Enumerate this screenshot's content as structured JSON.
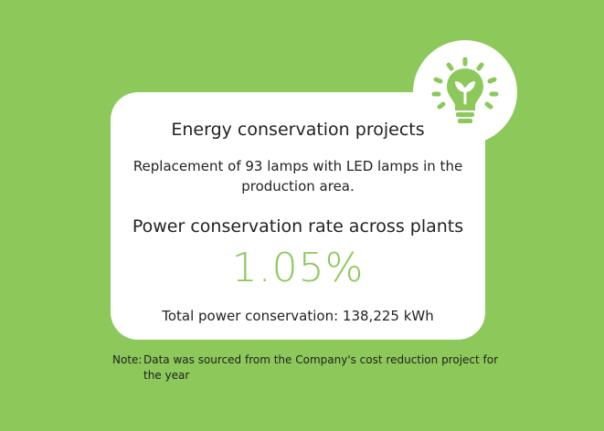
{
  "card": {
    "title": "Energy conservation projects",
    "description": "Replacement of 93 lamps with LED lamps in the production area.",
    "subtitle": "Power conservation rate across plants",
    "rate": "1.05%",
    "total": "Total power conservation: 138,225 kWh"
  },
  "note": {
    "label": "Note:",
    "text": "Data was sourced from the Company's cost reduction project for the year"
  },
  "icon": "lightbulb-leaf-icon",
  "colors": {
    "background": "#8cc85a",
    "accent": "#8cc85a",
    "card": "#ffffff"
  }
}
